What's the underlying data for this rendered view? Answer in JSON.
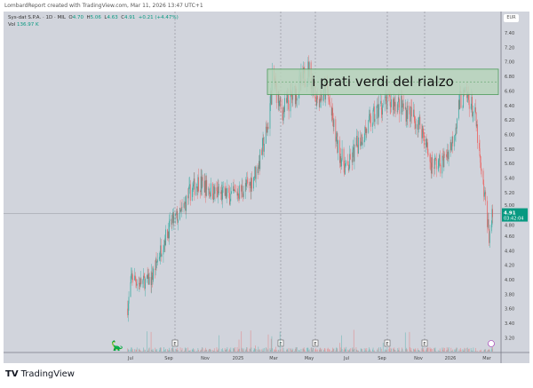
{
  "credit": "LombardReport created with TradingView.com, Mar 11, 2026 13:47 UTC+1",
  "legend": {
    "symbol": "Sys-dat S.P.A. · 1D · MIL",
    "o_label": "O",
    "o": "4.70",
    "h_label": "H",
    "h": "5.06",
    "l_label": "L",
    "l": "4.63",
    "c_label": "C",
    "c": "4.91",
    "change": "+0.21 (+4.47%)",
    "vol_label": "Vol",
    "vol": "136.97 K"
  },
  "currency": "EUR",
  "last_price": {
    "price": "4.91",
    "countdown": "03:42:04"
  },
  "annotation": "i prati verdi del rialzo",
  "brand": "TradingView",
  "colors": {
    "up": "#26a69a",
    "down": "#ef5350",
    "price_tag": "#089981",
    "annotation_fill": "#b7d3bb",
    "annotation_border": "#4c9a5a",
    "background": "#d1d4dc"
  },
  "chart_data": {
    "type": "candlestick",
    "y_ticks": [
      "7.40",
      "7.20",
      "7.00",
      "6.80",
      "6.60",
      "6.40",
      "6.20",
      "6.00",
      "5.80",
      "5.60",
      "5.40",
      "5.20",
      "5.00",
      "4.80",
      "4.60",
      "4.40",
      "4.20",
      "4.00",
      "3.80",
      "3.60",
      "3.40",
      "3.20"
    ],
    "x_ticks": [
      "Jul",
      "Sep",
      "Nov",
      "2025",
      "Mar",
      "May",
      "Jul",
      "Sep",
      "Nov",
      "2026",
      "Mar"
    ],
    "earnings_markers": [
      "E",
      "E",
      "E",
      "E",
      "E"
    ],
    "annotation_range": [
      6.55,
      6.9
    ],
    "close_path": [
      [
        "2024-06-26",
        3.6
      ],
      [
        "2024-07-03",
        4.05
      ],
      [
        "2024-07-15",
        3.95
      ],
      [
        "2024-08-05",
        4.0
      ],
      [
        "2024-08-25",
        4.5
      ],
      [
        "2024-09-10",
        4.8
      ],
      [
        "2024-09-25",
        4.9
      ],
      [
        "2024-10-10",
        5.2
      ],
      [
        "2024-10-25",
        5.35
      ],
      [
        "2024-11-20",
        5.2
      ],
      [
        "2024-12-20",
        5.15
      ],
      [
        "2025-01-20",
        5.3
      ],
      [
        "2025-02-05",
        5.6
      ],
      [
        "2025-02-20",
        6.1
      ],
      [
        "2025-03-01",
        6.8
      ],
      [
        "2025-03-15",
        6.3
      ],
      [
        "2025-04-10",
        6.6
      ],
      [
        "2025-05-01",
        6.9
      ],
      [
        "2025-05-15",
        6.5
      ],
      [
        "2025-06-01",
        6.6
      ],
      [
        "2025-06-20",
        5.8
      ],
      [
        "2025-07-05",
        5.5
      ],
      [
        "2025-07-25",
        5.9
      ],
      [
        "2025-08-10",
        6.1
      ],
      [
        "2025-09-01",
        6.4
      ],
      [
        "2025-09-25",
        6.45
      ],
      [
        "2025-10-20",
        6.3
      ],
      [
        "2025-11-10",
        6.1
      ],
      [
        "2025-11-25",
        5.6
      ],
      [
        "2025-12-15",
        5.6
      ],
      [
        "2026-01-01",
        5.9
      ],
      [
        "2026-01-15",
        6.5
      ],
      [
        "2026-01-30",
        6.5
      ],
      [
        "2026-02-10",
        6.2
      ],
      [
        "2026-02-20",
        5.4
      ],
      [
        "2026-02-28",
        5.0
      ],
      [
        "2026-03-05",
        4.6
      ],
      [
        "2026-03-11",
        4.91
      ]
    ]
  }
}
